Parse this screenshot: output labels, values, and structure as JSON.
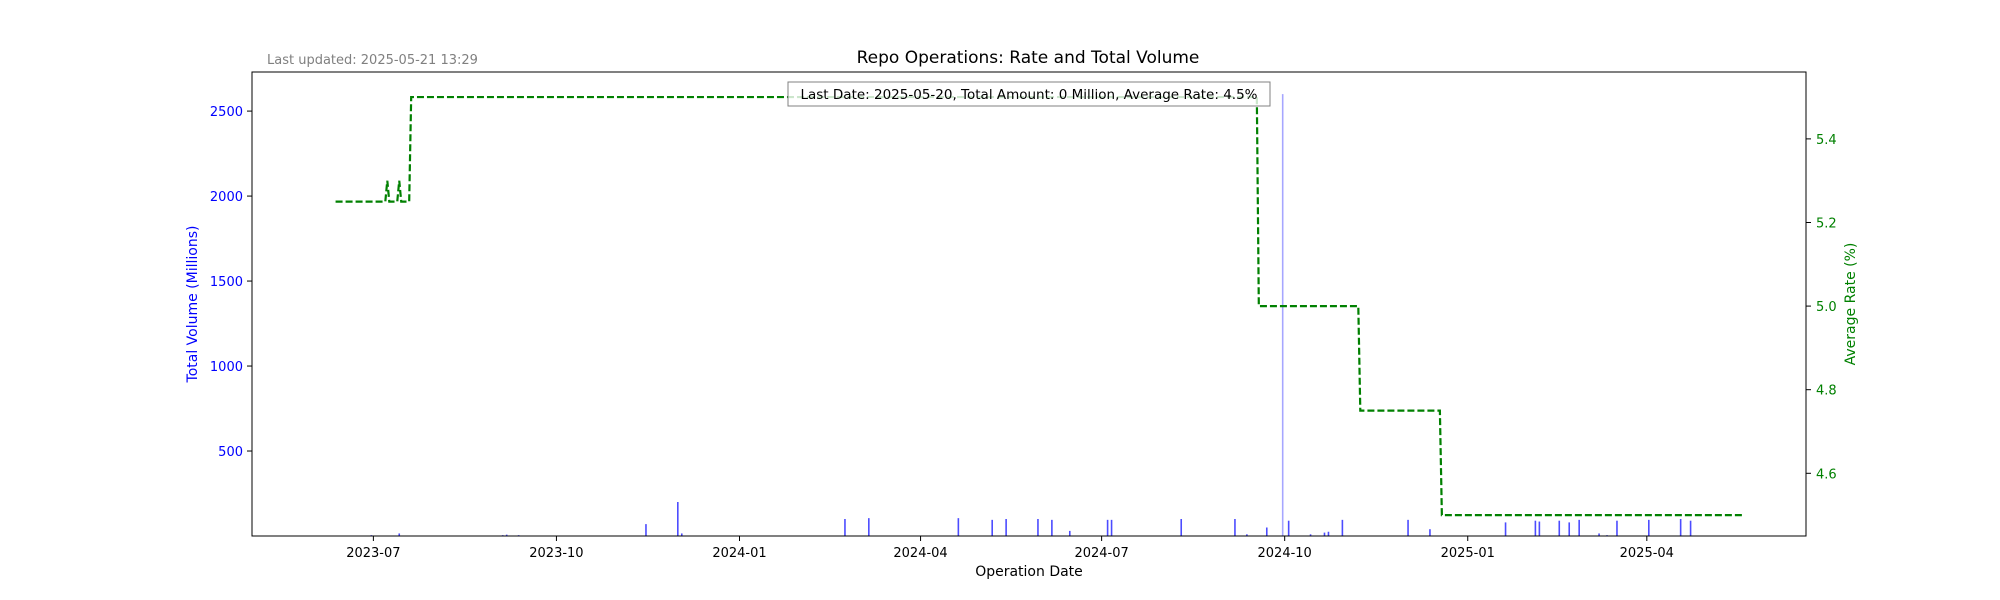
{
  "last_updated": "Last updated: 2025-05-21 13:29",
  "chart_data": {
    "type": "bar+line",
    "title": "Repo Operations: Rate and Total Volume",
    "xlabel": "Operation Date",
    "ylabel_left": "Total Volume (Millions)",
    "ylabel_right": "Average Rate (%)",
    "colors": {
      "volume": "#0000ff",
      "rate": "#008000"
    },
    "xlim": [
      "2023-05-01",
      "2025-06-20"
    ],
    "ylim_left": [
      0,
      2730
    ],
    "ylim_right": [
      4.45,
      5.56
    ],
    "x_ticks": [
      {
        "date": "2023-07-01",
        "label": "2023-07"
      },
      {
        "date": "2023-10-01",
        "label": "2023-10"
      },
      {
        "date": "2024-01-01",
        "label": "2024-01"
      },
      {
        "date": "2024-04-01",
        "label": "2024-04"
      },
      {
        "date": "2024-07-01",
        "label": "2024-07"
      },
      {
        "date": "2024-10-01",
        "label": "2024-10"
      },
      {
        "date": "2025-01-01",
        "label": "2025-01"
      },
      {
        "date": "2025-04-01",
        "label": "2025-04"
      }
    ],
    "y_ticks_left": [
      500,
      1000,
      1500,
      2000,
      2500
    ],
    "y_ticks_right": [
      4.6,
      4.8,
      5.0,
      5.2,
      5.4
    ],
    "annotation": "Last Date: 2025-05-20, Total Amount: 0 Million, Average Rate: 4.5%",
    "volume_bars": [
      {
        "date": "2023-06-30",
        "value": 5
      },
      {
        "date": "2023-07-14",
        "value": 15
      },
      {
        "date": "2023-09-04",
        "value": 5
      },
      {
        "date": "2023-09-06",
        "value": 8
      },
      {
        "date": "2023-09-12",
        "value": 5
      },
      {
        "date": "2023-11-15",
        "value": 70
      },
      {
        "date": "2023-12-01",
        "value": 200
      },
      {
        "date": "2023-12-03",
        "value": 15
      },
      {
        "date": "2024-02-23",
        "value": 100
      },
      {
        "date": "2024-03-06",
        "value": 105
      },
      {
        "date": "2024-04-20",
        "value": 105
      },
      {
        "date": "2024-05-07",
        "value": 95
      },
      {
        "date": "2024-05-14",
        "value": 100
      },
      {
        "date": "2024-05-30",
        "value": 100
      },
      {
        "date": "2024-06-06",
        "value": 95
      },
      {
        "date": "2024-06-15",
        "value": 30
      },
      {
        "date": "2024-07-04",
        "value": 95
      },
      {
        "date": "2024-07-06",
        "value": 95
      },
      {
        "date": "2024-08-10",
        "value": 100
      },
      {
        "date": "2024-09-06",
        "value": 100
      },
      {
        "date": "2024-09-12",
        "value": 10
      },
      {
        "date": "2024-09-22",
        "value": 50
      },
      {
        "date": "2024-09-30",
        "value": 2600
      },
      {
        "date": "2024-10-03",
        "value": 90
      },
      {
        "date": "2024-10-14",
        "value": 10
      },
      {
        "date": "2024-10-21",
        "value": 20
      },
      {
        "date": "2024-10-23",
        "value": 25
      },
      {
        "date": "2024-10-30",
        "value": 95
      },
      {
        "date": "2024-12-02",
        "value": 95
      },
      {
        "date": "2024-12-13",
        "value": 40
      },
      {
        "date": "2025-01-20",
        "value": 80
      },
      {
        "date": "2025-02-04",
        "value": 90
      },
      {
        "date": "2025-02-06",
        "value": 85
      },
      {
        "date": "2025-02-16",
        "value": 90
      },
      {
        "date": "2025-02-21",
        "value": 80
      },
      {
        "date": "2025-02-26",
        "value": 95
      },
      {
        "date": "2025-03-08",
        "value": 15
      },
      {
        "date": "2025-03-12",
        "value": 5
      },
      {
        "date": "2025-03-17",
        "value": 90
      },
      {
        "date": "2025-04-02",
        "value": 95
      },
      {
        "date": "2025-04-18",
        "value": 100
      },
      {
        "date": "2025-04-23",
        "value": 90
      },
      {
        "date": "2025-05-20",
        "value": 0
      }
    ],
    "rate_line": [
      {
        "date": "2023-06-12",
        "value": 5.25
      },
      {
        "date": "2023-07-07",
        "value": 5.25
      },
      {
        "date": "2023-07-08",
        "value": 5.3
      },
      {
        "date": "2023-07-09",
        "value": 5.25
      },
      {
        "date": "2023-07-13",
        "value": 5.25
      },
      {
        "date": "2023-07-14",
        "value": 5.3
      },
      {
        "date": "2023-07-15",
        "value": 5.25
      },
      {
        "date": "2023-07-19",
        "value": 5.25
      },
      {
        "date": "2023-07-20",
        "value": 5.5
      },
      {
        "date": "2024-09-17",
        "value": 5.5
      },
      {
        "date": "2024-09-18",
        "value": 5.0
      },
      {
        "date": "2024-11-07",
        "value": 5.0
      },
      {
        "date": "2024-11-08",
        "value": 4.75
      },
      {
        "date": "2024-12-18",
        "value": 4.75
      },
      {
        "date": "2024-12-19",
        "value": 4.5
      },
      {
        "date": "2025-05-20",
        "value": 4.5
      }
    ]
  }
}
